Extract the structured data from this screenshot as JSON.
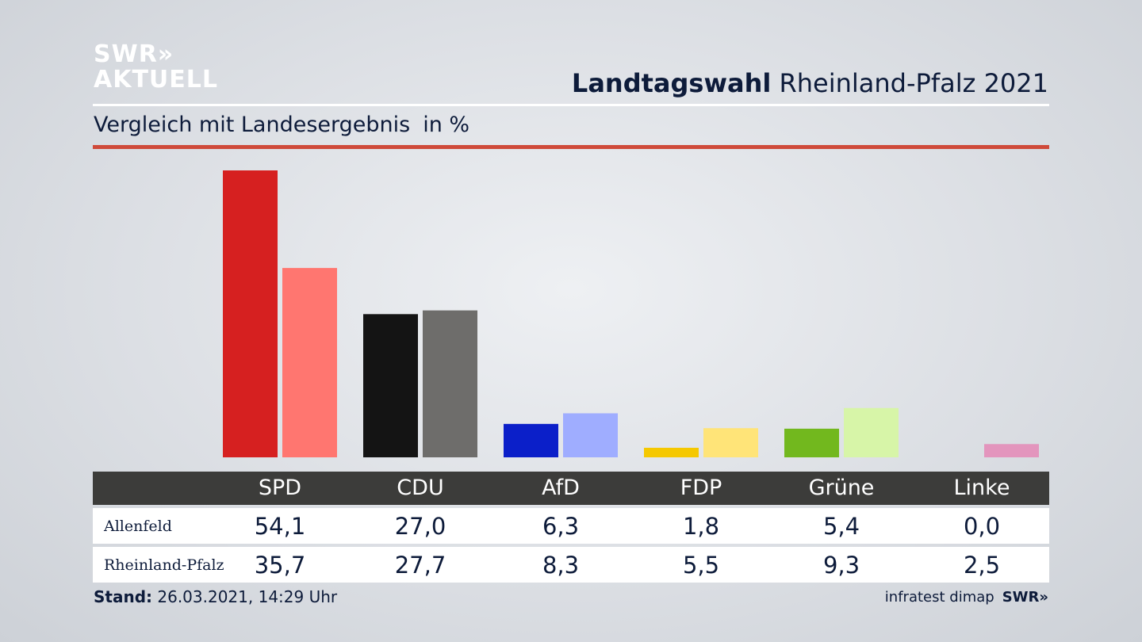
{
  "logo": {
    "line1": "SWR»",
    "line2": "AKTUELL"
  },
  "header": {
    "title_bold": "Landtagswahl",
    "title_rest": " Rheinland-Pfalz 2021"
  },
  "subtitle": {
    "text": "Vergleich mit Landesergebnis",
    "unit": "in %"
  },
  "chart_data": {
    "type": "bar",
    "title": "Landtagswahl Rheinland-Pfalz 2021",
    "subtitle": "Vergleich mit Landesergebnis in %",
    "categories": [
      "SPD",
      "CDU",
      "AfD",
      "FDP",
      "Grüne",
      "Linke"
    ],
    "series": [
      {
        "name": "Allenfeld",
        "values": [
          54.1,
          27.0,
          6.3,
          1.8,
          5.4,
          0.0
        ],
        "colors": [
          "#d62020",
          "#141414",
          "#0b1fc9",
          "#f5c800",
          "#72b81e",
          "#d87ab0"
        ]
      },
      {
        "name": "Rheinland-Pfalz",
        "values": [
          35.7,
          27.7,
          8.3,
          5.5,
          9.3,
          2.5
        ],
        "colors": [
          "#ff7670",
          "#6e6d6b",
          "#9fadff",
          "#ffe478",
          "#d7f5a8",
          "#e395bd"
        ]
      }
    ],
    "ylim": [
      0,
      54.1
    ],
    "grid": false,
    "legend": "table-below"
  },
  "table": {
    "headers": [
      "SPD",
      "CDU",
      "AfD",
      "FDP",
      "Grüne",
      "Linke"
    ],
    "rows": [
      {
        "label": "Allenfeld",
        "values": [
          "54,1",
          "27,0",
          "6,3",
          "1,8",
          "5,4",
          "0,0"
        ]
      },
      {
        "label": "Rheinland-Pfalz",
        "values": [
          "35,7",
          "27,7",
          "8,3",
          "5,5",
          "9,3",
          "2,5"
        ]
      }
    ]
  },
  "footer": {
    "stand_label": "Stand:",
    "stand_value": " 26.03.2021, 14:29 Uhr",
    "source": "infratest dimap",
    "brand": "SWR»"
  }
}
